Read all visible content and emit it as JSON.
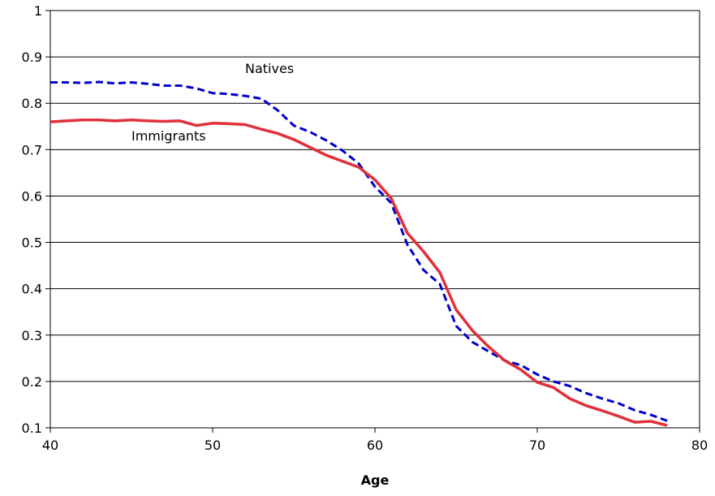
{
  "chart_data": {
    "type": "line",
    "title": "",
    "xlabel": "Age",
    "ylabel": "",
    "xlim": [
      40,
      80
    ],
    "ylim": [
      0.1,
      1
    ],
    "x_ticks": [
      40,
      50,
      60,
      70,
      80
    ],
    "y_ticks": [
      0.1,
      0.2,
      0.3,
      0.4,
      0.5,
      0.6,
      0.7,
      0.8,
      0.9,
      1
    ],
    "y_tick_labels": [
      "0.1",
      "0.2",
      "0.3",
      "0.4",
      "0.5",
      "0.6",
      "0.7",
      "0.8",
      "0.9",
      "1"
    ],
    "grid": "horizontal",
    "series": [
      {
        "name": "Natives",
        "color": "#0000cc",
        "style": "dashed",
        "x": [
          40,
          41,
          42,
          43,
          44,
          45,
          46,
          47,
          48,
          49,
          50,
          51,
          52,
          53,
          54,
          55,
          56,
          57,
          58,
          59,
          60,
          61,
          62,
          63,
          64,
          65,
          66,
          67,
          68,
          69,
          70,
          71,
          72,
          73,
          74,
          75,
          76,
          77,
          78
        ],
        "values": [
          0.845,
          0.845,
          0.844,
          0.846,
          0.843,
          0.845,
          0.842,
          0.838,
          0.838,
          0.832,
          0.822,
          0.82,
          0.816,
          0.81,
          0.785,
          0.752,
          0.738,
          0.72,
          0.698,
          0.67,
          0.62,
          0.585,
          0.495,
          0.44,
          0.41,
          0.32,
          0.285,
          0.265,
          0.245,
          0.235,
          0.215,
          0.2,
          0.19,
          0.175,
          0.163,
          0.153,
          0.138,
          0.128,
          0.115
        ]
      },
      {
        "name": "Immigrants",
        "color": "#e0303a",
        "style": "solid",
        "x": [
          40,
          41,
          42,
          43,
          44,
          45,
          46,
          47,
          48,
          49,
          50,
          51,
          52,
          53,
          54,
          55,
          56,
          57,
          58,
          59,
          60,
          61,
          62,
          63,
          64,
          65,
          66,
          67,
          68,
          69,
          70,
          71,
          72,
          73,
          74,
          75,
          76,
          77,
          78
        ],
        "values": [
          0.76,
          0.762,
          0.764,
          0.764,
          0.762,
          0.764,
          0.762,
          0.761,
          0.762,
          0.752,
          0.757,
          0.756,
          0.754,
          0.744,
          0.735,
          0.722,
          0.705,
          0.688,
          0.675,
          0.662,
          0.635,
          0.595,
          0.52,
          0.48,
          0.435,
          0.355,
          0.31,
          0.275,
          0.245,
          0.225,
          0.198,
          0.187,
          0.163,
          0.148,
          0.137,
          0.125,
          0.112,
          0.114,
          0.105
        ]
      }
    ],
    "annotations": [
      {
        "text": "Natives",
        "series": "Natives",
        "at_x": 52,
        "at_y": 0.865
      },
      {
        "text": "Immigrants",
        "series": "Immigrants",
        "at_x": 45,
        "at_y": 0.72
      }
    ]
  }
}
